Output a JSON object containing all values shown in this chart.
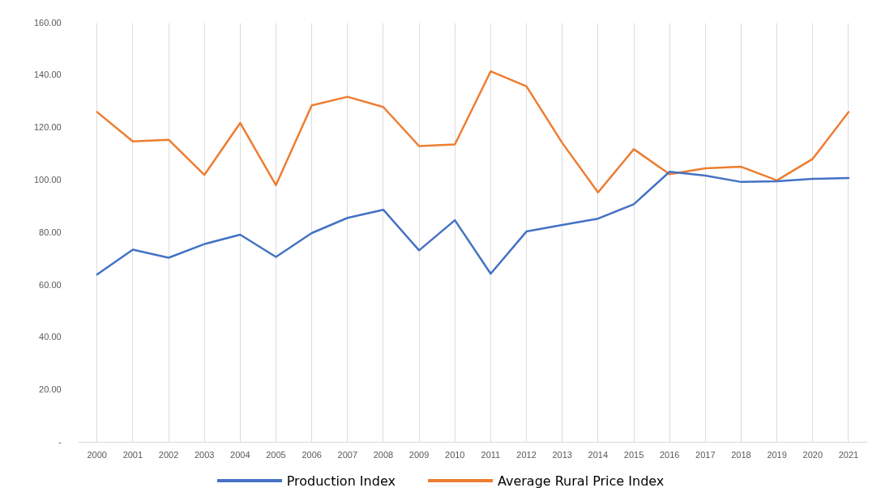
{
  "chart_data": {
    "type": "line",
    "categories": [
      "2000",
      "2001",
      "2002",
      "2003",
      "2004",
      "2005",
      "2006",
      "2007",
      "2008",
      "2009",
      "2010",
      "2011",
      "2012",
      "2013",
      "2014",
      "2015",
      "2016",
      "2017",
      "2018",
      "2019",
      "2020",
      "2021"
    ],
    "series": [
      {
        "name": "Production Index",
        "color": "#4472c4",
        "values": [
          64.1,
          73.6,
          70.5,
          75.7,
          79.3,
          70.8,
          79.9,
          85.7,
          88.8,
          73.3,
          84.8,
          64.4,
          80.5,
          83.0,
          85.4,
          90.9,
          103.3,
          101.8,
          99.4,
          99.7,
          100.6,
          100.9
        ]
      },
      {
        "name": "Average Rural Price Index",
        "color": "#ed7d31",
        "values": [
          126.1,
          114.9,
          115.5,
          102.1,
          121.9,
          98.2,
          128.6,
          131.9,
          128.0,
          113.1,
          113.7,
          141.6,
          135.9,
          114.3,
          95.4,
          111.9,
          102.4,
          104.6,
          105.2,
          100.0,
          108.2,
          126.1
        ]
      }
    ],
    "ylim": [
      0,
      160
    ],
    "yticks": [
      {
        "value": 0,
        "label": "-"
      },
      {
        "value": 20,
        "label": "20.00"
      },
      {
        "value": 40,
        "label": "40.00"
      },
      {
        "value": 60,
        "label": "60.00"
      },
      {
        "value": 80,
        "label": "80.00"
      },
      {
        "value": 100,
        "label": "100.00"
      },
      {
        "value": 120,
        "label": "120.00"
      },
      {
        "value": 140,
        "label": "140.00"
      },
      {
        "value": 160,
        "label": "160.00"
      }
    ],
    "grid": "x",
    "legend": "bottom",
    "marker": "none",
    "line_style": "solid"
  }
}
